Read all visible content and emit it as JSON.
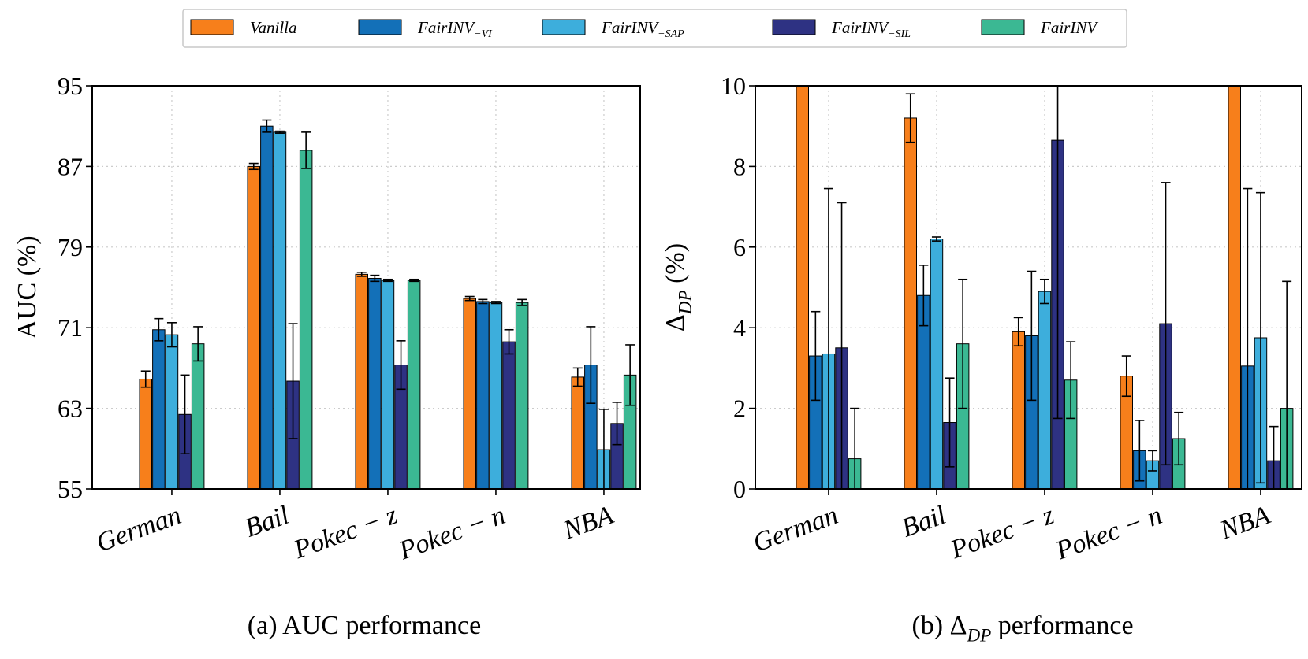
{
  "colors": {
    "vanilla": "#f77f1b",
    "vi": "#1370b8",
    "sap": "#3daedc",
    "sil": "#2e3283",
    "full": "#3bb893",
    "grid": "#cccccc",
    "axis": "#000000"
  },
  "legend": {
    "items": [
      {
        "label": "Vanilla",
        "sub": "",
        "color_key": "vanilla"
      },
      {
        "label": "FairINV",
        "sub": "−VI",
        "color_key": "vi"
      },
      {
        "label": "FairINV",
        "sub": "−SAP",
        "color_key": "sap"
      },
      {
        "label": "FairINV",
        "sub": "−SIL",
        "color_key": "sil"
      },
      {
        "label": "FairINV",
        "sub": "",
        "color_key": "full"
      }
    ]
  },
  "chart_data": [
    {
      "type": "bar",
      "caption": "(a) AUC performance",
      "ylabel": "AUC (%)",
      "ylim": [
        55,
        95
      ],
      "yticks": [
        55,
        63,
        71,
        79,
        87,
        95
      ],
      "grid": true,
      "categories": [
        "German",
        "Bail",
        "Pokec − z",
        "Pokec − n",
        "NBA"
      ],
      "series": [
        {
          "name": "Vanilla",
          "values": [
            65.9,
            87.0,
            76.3,
            73.9,
            66.1
          ],
          "errors": [
            0.8,
            0.3,
            0.2,
            0.2,
            0.9
          ]
        },
        {
          "name": "FairINV−VI",
          "values": [
            70.8,
            91.0,
            75.9,
            73.6,
            67.3
          ],
          "errors": [
            1.1,
            0.6,
            0.3,
            0.2,
            3.8
          ]
        },
        {
          "name": "FairINV−SAP",
          "values": [
            70.3,
            90.4,
            75.7,
            73.5,
            58.9
          ],
          "errors": [
            1.2,
            0.1,
            0.1,
            0.1,
            4.0
          ]
        },
        {
          "name": "FairINV−SIL",
          "values": [
            62.4,
            65.7,
            67.3,
            69.6,
            61.5
          ],
          "errors": [
            3.9,
            5.7,
            2.4,
            1.2,
            2.1
          ]
        },
        {
          "name": "FairINV",
          "values": [
            69.4,
            88.6,
            75.7,
            73.5,
            66.3
          ],
          "errors": [
            1.7,
            1.8,
            0.1,
            0.3,
            3.0
          ]
        }
      ]
    },
    {
      "type": "bar",
      "caption": "(b) Δ_DP performance",
      "ylabel": "Δ_DP (%)",
      "ylim": [
        0,
        10
      ],
      "yticks": [
        0,
        2,
        4,
        6,
        8,
        10
      ],
      "grid": true,
      "categories": [
        "German",
        "Bail",
        "Pokec − z",
        "Pokec − n",
        "NBA"
      ],
      "series": [
        {
          "name": "Vanilla",
          "values": [
            10.5,
            9.2,
            3.9,
            2.8,
            10.5
          ],
          "errors": [
            0,
            0.6,
            0.35,
            0.5,
            0
          ]
        },
        {
          "name": "FairINV−VI",
          "values": [
            3.3,
            4.8,
            3.8,
            0.95,
            3.05
          ],
          "errors": [
            1.1,
            0.75,
            1.6,
            0.75,
            4.4
          ]
        },
        {
          "name": "FairINV−SAP",
          "values": [
            3.35,
            6.2,
            4.9,
            0.7,
            3.75
          ],
          "errors": [
            4.1,
            0.05,
            0.3,
            0.25,
            3.6
          ]
        },
        {
          "name": "FairINV−SIL",
          "values": [
            3.5,
            1.65,
            8.65,
            4.1,
            0.7
          ],
          "errors": [
            3.6,
            1.1,
            6.9,
            3.5,
            0.85
          ]
        },
        {
          "name": "FairINV",
          "values": [
            0.75,
            3.6,
            2.7,
            1.25,
            2.0
          ],
          "errors": [
            1.25,
            1.6,
            0.95,
            0.65,
            3.15
          ]
        }
      ]
    }
  ]
}
